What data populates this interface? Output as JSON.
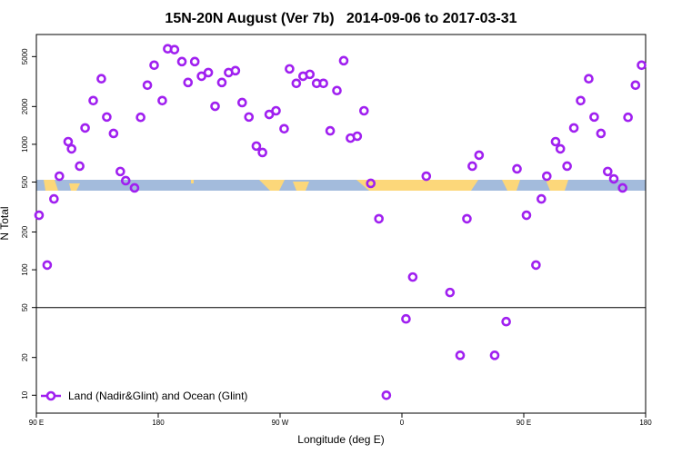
{
  "chart_data": {
    "type": "scatter",
    "title": "15N-20N August (Ver 7b)   2014-09-06 to 2017-03-31",
    "x_label": "Longitude (deg E)",
    "y_label": "N Total",
    "y_scale": "log",
    "xlim": [
      90,
      540
    ],
    "ylim": [
      7.2,
      7500
    ],
    "xticks": [
      {
        "value": 90,
        "label": "90 E"
      },
      {
        "value": 180,
        "label": "180"
      },
      {
        "value": 270,
        "label": "90 W"
      },
      {
        "value": 360,
        "label": "0"
      },
      {
        "value": 450,
        "label": "90 E"
      },
      {
        "value": 540,
        "label": "180"
      }
    ],
    "yticks": [
      10,
      20,
      50,
      100,
      200,
      500,
      1000,
      2000,
      5000
    ],
    "hline": 50,
    "legend": "lower left",
    "x": [
      92,
      98,
      103,
      107,
      113.5,
      116,
      122,
      126,
      132,
      138,
      142,
      147,
      152,
      156,
      162.5,
      167,
      172,
      177,
      183,
      187,
      192,
      197.5,
      202,
      207,
      212,
      217,
      222,
      227,
      232,
      237,
      242,
      247,
      252.5,
      257,
      262,
      267,
      273,
      277,
      282,
      287,
      292,
      297,
      302,
      307,
      312,
      317,
      322,
      327,
      332,
      337,
      343,
      348.5,
      363,
      368,
      378,
      395.5,
      403,
      408,
      412,
      417,
      428.5,
      437,
      445,
      452,
      459,
      463,
      467,
      473.5,
      477,
      482,
      487,
      492,
      498,
      502,
      507,
      512,
      516.5,
      523,
      527,
      532.5,
      537
    ],
    "series": [
      {
        "name": "Land (Nadir&Glint) and Ocean (Glint)",
        "color": "#a020f0",
        "values": [
          272,
          109,
          367,
          557,
          1050,
          920,
          670,
          1350,
          2230,
          3330,
          1650,
          1220,
          607,
          513,
          449,
          1640,
          2960,
          4270,
          2230,
          5770,
          5680,
          4560,
          3110,
          4560,
          3490,
          3730,
          2010,
          3110,
          3730,
          3860,
          2150,
          1650,
          968,
          860,
          1730,
          1850,
          1330,
          3990,
          3060,
          3490,
          3610,
          3060,
          3060,
          1280,
          2680,
          4640,
          1120,
          1160,
          1850,
          488,
          255,
          10,
          40.6,
          87.5,
          557,
          65.9,
          20.8,
          255,
          670,
          819,
          20.8,
          38.6,
          637,
          272,
          109,
          367,
          557,
          1050,
          920,
          670,
          1350,
          2230,
          3330,
          1650,
          1220,
          607,
          530,
          449,
          1640,
          2960,
          4270
        ]
      }
    ]
  }
}
